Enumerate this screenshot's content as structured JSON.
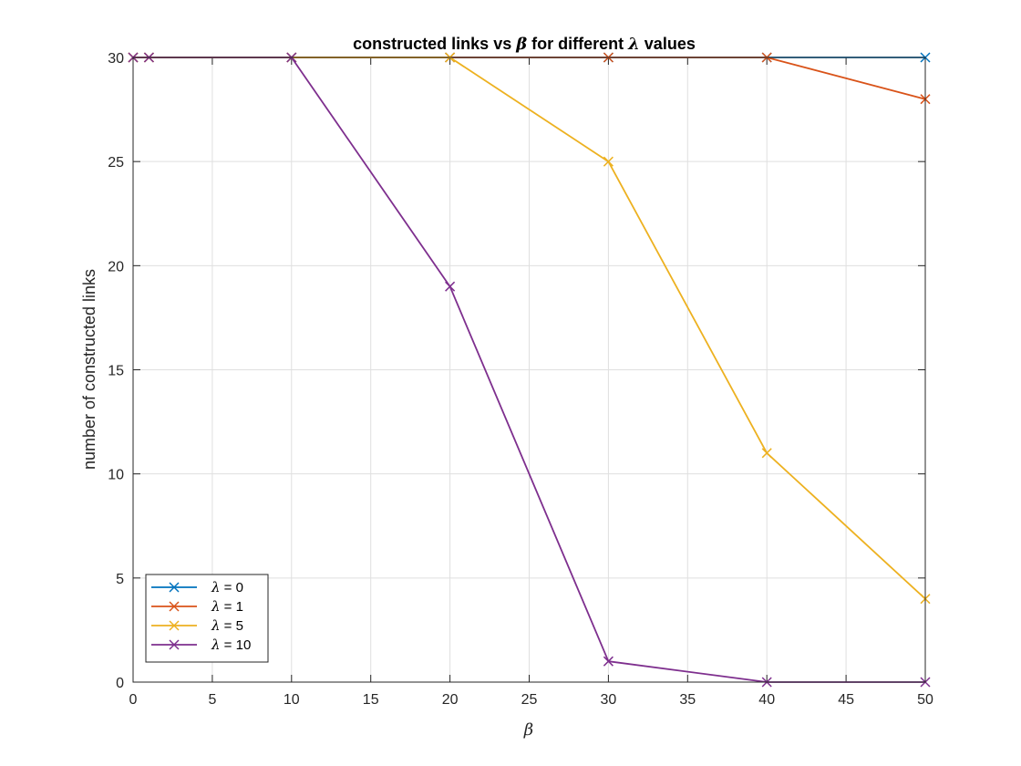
{
  "chart_data": {
    "type": "line",
    "title_prefix": "constructed links vs ",
    "title_beta": "β",
    "title_mid": " for different ",
    "title_lambda": "λ",
    "title_suffix": " values",
    "xlabel": "β",
    "ylabel": "number of constructed links",
    "xlim": [
      0,
      50
    ],
    "ylim": [
      0,
      30
    ],
    "xticks": [
      0,
      5,
      10,
      15,
      20,
      25,
      30,
      35,
      40,
      45,
      50
    ],
    "yticks": [
      0,
      5,
      10,
      15,
      20,
      25,
      30
    ],
    "grid": true,
    "legend_position": "bottom-left",
    "x": [
      0,
      1,
      10,
      20,
      30,
      40,
      50
    ],
    "series": [
      {
        "name": "λ = 0",
        "symbol": "λ",
        "suffix": " = 0",
        "color": "#0072BD",
        "values": [
          30,
          30,
          30,
          30,
          30,
          30,
          30
        ]
      },
      {
        "name": "λ = 1",
        "symbol": "λ",
        "suffix": " = 1",
        "color": "#D95319",
        "values": [
          30,
          30,
          30,
          30,
          30,
          30,
          28
        ]
      },
      {
        "name": "λ = 5",
        "symbol": "λ",
        "suffix": " = 5",
        "color": "#EDB120",
        "values": [
          30,
          30,
          30,
          30,
          25,
          11,
          4
        ]
      },
      {
        "name": "λ = 10",
        "symbol": "λ",
        "suffix": " = 10",
        "color": "#7E2F8E",
        "values": [
          30,
          30,
          30,
          19,
          1,
          0,
          0
        ]
      }
    ]
  }
}
